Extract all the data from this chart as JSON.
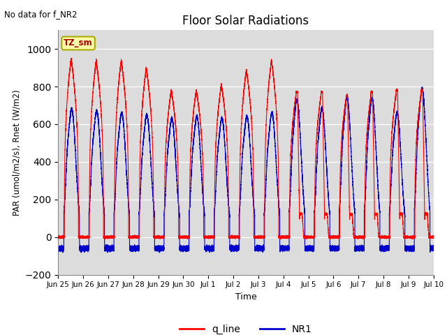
{
  "title": "Floor Solar Radiations",
  "ylabel": "PAR (umol/m2/s), Rnet (W/m2)",
  "xlabel": "Time",
  "annotation_top_left": "No data for f_NR2",
  "zone_label": "TZ_sm",
  "ylim": [
    -200,
    1100
  ],
  "yticks": [
    -200,
    0,
    200,
    400,
    600,
    800,
    1000
  ],
  "bg_color": "#dcdcdc",
  "line_color_red": "#ff0000",
  "line_color_blue": "#0000cc",
  "legend_entries": [
    "q_line",
    "NR1"
  ],
  "q_peaks": [
    950,
    940,
    940,
    900,
    780,
    780,
    810,
    890,
    940,
    770,
    770,
    750,
    770,
    780,
    780
  ],
  "nr1_peaks": [
    680,
    670,
    660,
    650,
    630,
    640,
    630,
    640,
    660,
    730,
    685,
    740,
    735,
    660,
    790
  ],
  "tick_labels": [
    "Jun 25",
    "Jun 26",
    "Jun 27",
    "Jun 28",
    "Jun 29",
    "Jun 30",
    "Jul 1",
    "Jul 2",
    "Jul 3",
    "Jul 4",
    "Jul 5",
    "Jul 6",
    "Jul 7",
    "Jul 8",
    "Jul 9",
    "Jul 10"
  ]
}
